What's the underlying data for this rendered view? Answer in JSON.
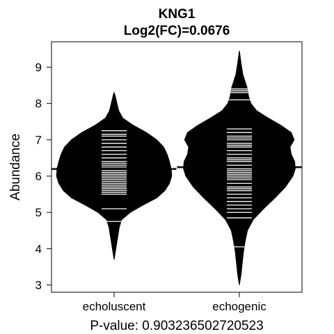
{
  "chart_data": {
    "type": "beanplot",
    "title": "KNG1",
    "subtitle": "Log2(FC)=0.0676",
    "xlabel": "P-value: 0.903236502720523",
    "ylabel": "Abundance",
    "ylim": [
      2.8,
      9.7
    ],
    "yticks": [
      3,
      4,
      5,
      6,
      7,
      8,
      9
    ],
    "categories": [
      "echoluscent",
      "echogenic"
    ],
    "overall_mean": 6.22,
    "groups": [
      {
        "name": "echoluscent",
        "mean": 6.19,
        "range": [
          3.7,
          8.3
        ],
        "density": [
          [
            3.7,
            0.0
          ],
          [
            4.0,
            0.03
          ],
          [
            4.3,
            0.06
          ],
          [
            4.6,
            0.09
          ],
          [
            4.8,
            0.13
          ],
          [
            5.0,
            0.28
          ],
          [
            5.2,
            0.5
          ],
          [
            5.4,
            0.74
          ],
          [
            5.6,
            0.88
          ],
          [
            5.8,
            0.96
          ],
          [
            6.0,
            1.0
          ],
          [
            6.2,
            0.99
          ],
          [
            6.4,
            0.96
          ],
          [
            6.6,
            0.92
          ],
          [
            6.8,
            0.86
          ],
          [
            7.0,
            0.74
          ],
          [
            7.2,
            0.56
          ],
          [
            7.4,
            0.33
          ],
          [
            7.6,
            0.15
          ],
          [
            7.8,
            0.08
          ],
          [
            8.0,
            0.05
          ],
          [
            8.2,
            0.02
          ],
          [
            8.3,
            0.0
          ]
        ],
        "points": [
          4.75,
          5.1,
          5.5,
          5.55,
          5.6,
          5.65,
          5.7,
          5.75,
          5.8,
          5.85,
          5.9,
          5.95,
          6.0,
          6.05,
          6.1,
          6.15,
          6.2,
          6.25,
          6.3,
          6.35,
          6.4,
          6.5,
          6.6,
          6.7,
          6.8,
          6.9,
          7.0,
          7.1,
          7.15,
          7.25
        ]
      },
      {
        "name": "echogenic",
        "mean": 6.25,
        "range": [
          3.0,
          9.45
        ],
        "density": [
          [
            3.0,
            0.0
          ],
          [
            3.3,
            0.03
          ],
          [
            3.6,
            0.05
          ],
          [
            3.9,
            0.07
          ],
          [
            4.2,
            0.1
          ],
          [
            4.5,
            0.14
          ],
          [
            4.8,
            0.24
          ],
          [
            5.1,
            0.42
          ],
          [
            5.4,
            0.62
          ],
          [
            5.7,
            0.8
          ],
          [
            6.0,
            0.93
          ],
          [
            6.2,
            0.97
          ],
          [
            6.4,
            0.96
          ],
          [
            6.6,
            0.9
          ],
          [
            6.8,
            0.88
          ],
          [
            7.0,
            0.95
          ],
          [
            7.2,
            0.9
          ],
          [
            7.4,
            0.72
          ],
          [
            7.6,
            0.5
          ],
          [
            7.8,
            0.3
          ],
          [
            8.0,
            0.2
          ],
          [
            8.2,
            0.16
          ],
          [
            8.4,
            0.14
          ],
          [
            8.6,
            0.1
          ],
          [
            8.8,
            0.06
          ],
          [
            9.1,
            0.03
          ],
          [
            9.45,
            0.0
          ]
        ],
        "points": [
          4.05,
          4.85,
          5.0,
          5.1,
          5.2,
          5.3,
          5.4,
          5.5,
          5.6,
          5.65,
          5.7,
          5.8,
          5.9,
          5.95,
          6.0,
          6.05,
          6.1,
          6.15,
          6.2,
          6.3,
          6.4,
          6.45,
          6.5,
          6.6,
          6.7,
          6.8,
          6.85,
          6.9,
          7.0,
          7.05,
          7.1,
          7.2,
          7.3,
          8.1,
          8.3,
          8.35,
          8.4
        ]
      }
    ]
  }
}
